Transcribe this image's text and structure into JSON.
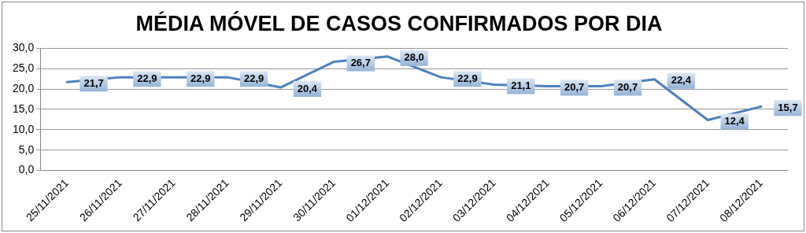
{
  "chart_data": {
    "type": "line",
    "title": "MÉDIA MÓVEL DE CASOS CONFIRMADOS POR DIA",
    "categories": [
      "25/11/2021",
      "26/11/2021",
      "27/11/2021",
      "28/11/2021",
      "29/11/2021",
      "30/11/2021",
      "01/12/2021",
      "02/12/2021",
      "03/12/2021",
      "04/12/2021",
      "05/12/2021",
      "06/12/2021",
      "07/12/2021",
      "08/12/2021"
    ],
    "series": [
      {
        "color": "#4f81bd",
        "values": [
          21.7,
          22.9,
          22.9,
          22.9,
          20.4,
          26.7,
          28.0,
          22.9,
          21.1,
          20.7,
          20.7,
          22.4,
          12.4,
          15.7
        ],
        "value_labels": [
          "21,7",
          "22,9",
          "22,9",
          "22,9",
          "20,4",
          "26,7",
          "28,0",
          "22,9",
          "21,1",
          "20,7",
          "20,7",
          "22,4",
          "12,4",
          "15,7"
        ]
      }
    ],
    "ylim": [
      0,
      30
    ],
    "yticks": [
      {
        "value": 0,
        "label": "0,0"
      },
      {
        "value": 5,
        "label": "5,0"
      },
      {
        "value": 10,
        "label": "10,0"
      },
      {
        "value": 15,
        "label": "15,0"
      },
      {
        "value": 20,
        "label": "20,0"
      },
      {
        "value": 25,
        "label": "25,0"
      },
      {
        "value": 30,
        "label": "30,0"
      }
    ],
    "grid": "y",
    "legend": false,
    "marker": "none",
    "line_style": "solid"
  }
}
